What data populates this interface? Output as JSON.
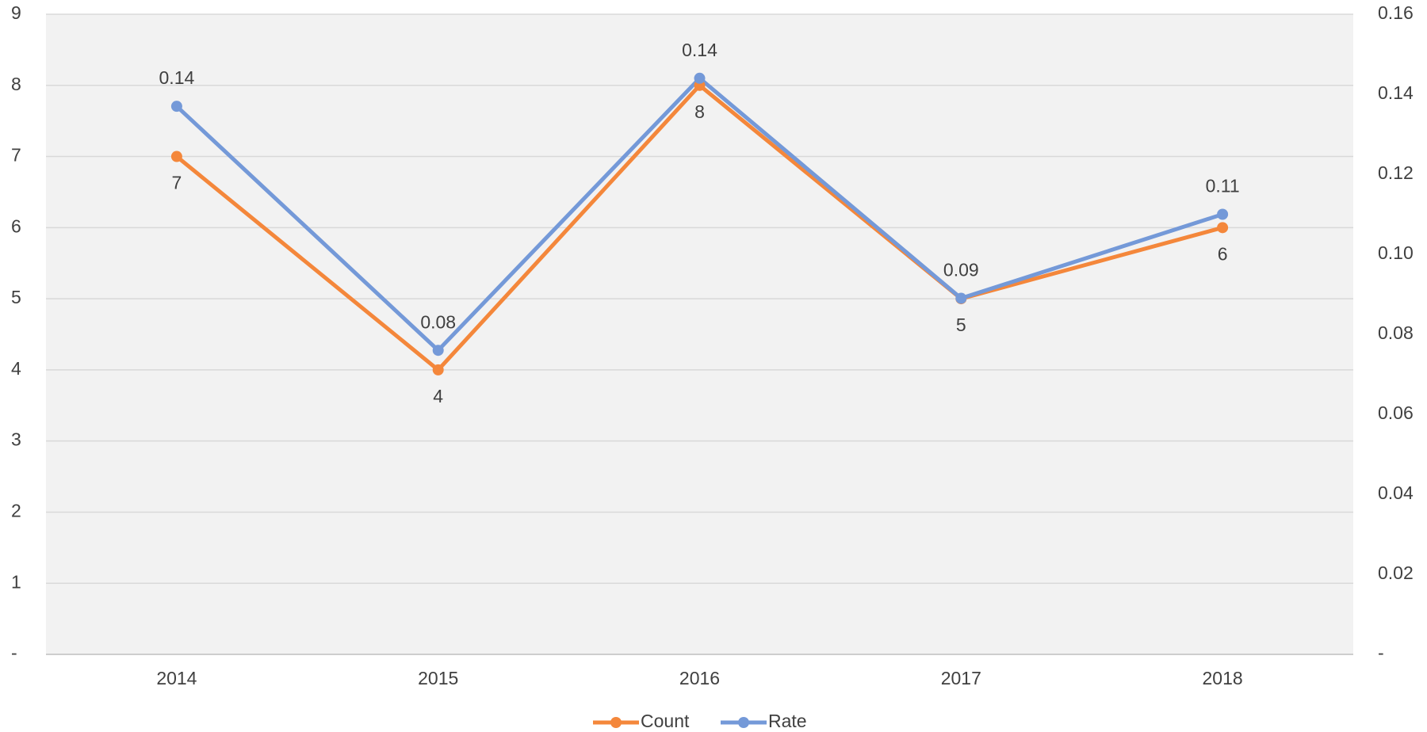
{
  "chart_data": {
    "type": "line",
    "categories": [
      "2014",
      "2015",
      "2016",
      "2017",
      "2018"
    ],
    "series": [
      {
        "name": "Count",
        "color": "#f4873b",
        "values": [
          7,
          4,
          8,
          5,
          6
        ]
      },
      {
        "name": "Rate",
        "color": "#7499d8",
        "axis": "y2",
        "values": [
          0.137,
          0.076,
          0.144,
          0.089,
          0.11
        ],
        "value_labels": [
          "0.14",
          "0.08",
          "0.14",
          "0.09",
          "0.11"
        ]
      }
    ],
    "ylim": [
      0,
      9
    ],
    "yticks": [
      {
        "value": 0,
        "label": "-"
      },
      1,
      2,
      3,
      4,
      5,
      6,
      7,
      8,
      9
    ],
    "y2lim": [
      0,
      0.16
    ],
    "y2ticks": [
      {
        "value": 0,
        "label": "-"
      },
      0.02,
      0.04,
      0.06,
      0.08,
      {
        "value": 0.1,
        "label": "0.10"
      },
      0.12,
      0.14,
      0.16
    ],
    "grid": true,
    "legend": "bottom"
  }
}
